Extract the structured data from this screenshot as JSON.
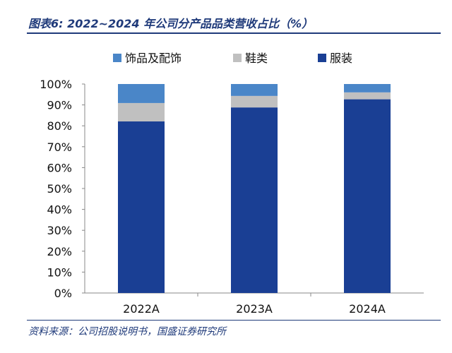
{
  "title": "图表6:  2022~2024 年公司分产品品类营收占比（%）",
  "source": "资料来源：公司招股说明书，国盛证券研究所",
  "chart_data": {
    "type": "bar",
    "stacked": true,
    "categories": [
      "2022A",
      "2023A",
      "2024A"
    ],
    "series": [
      {
        "name": "服装",
        "values": [
          82.1,
          88.8,
          92.7
        ],
        "color": "#1a3f94"
      },
      {
        "name": "鞋类",
        "values": [
          8.8,
          5.5,
          3.3
        ],
        "color": "#c0c0c0"
      },
      {
        "name": "饰品及配饰",
        "values": [
          9.1,
          5.7,
          4.0
        ],
        "color": "#4a86c8"
      }
    ],
    "legend_order": [
      "饰品及配饰",
      "鞋类",
      "服装"
    ],
    "legend_position": "top",
    "ylim": [
      0,
      100
    ],
    "yticks": [
      "0%",
      "10%",
      "20%",
      "30%",
      "40%",
      "50%",
      "60%",
      "70%",
      "80%",
      "90%",
      "100%"
    ],
    "grid": false
  }
}
